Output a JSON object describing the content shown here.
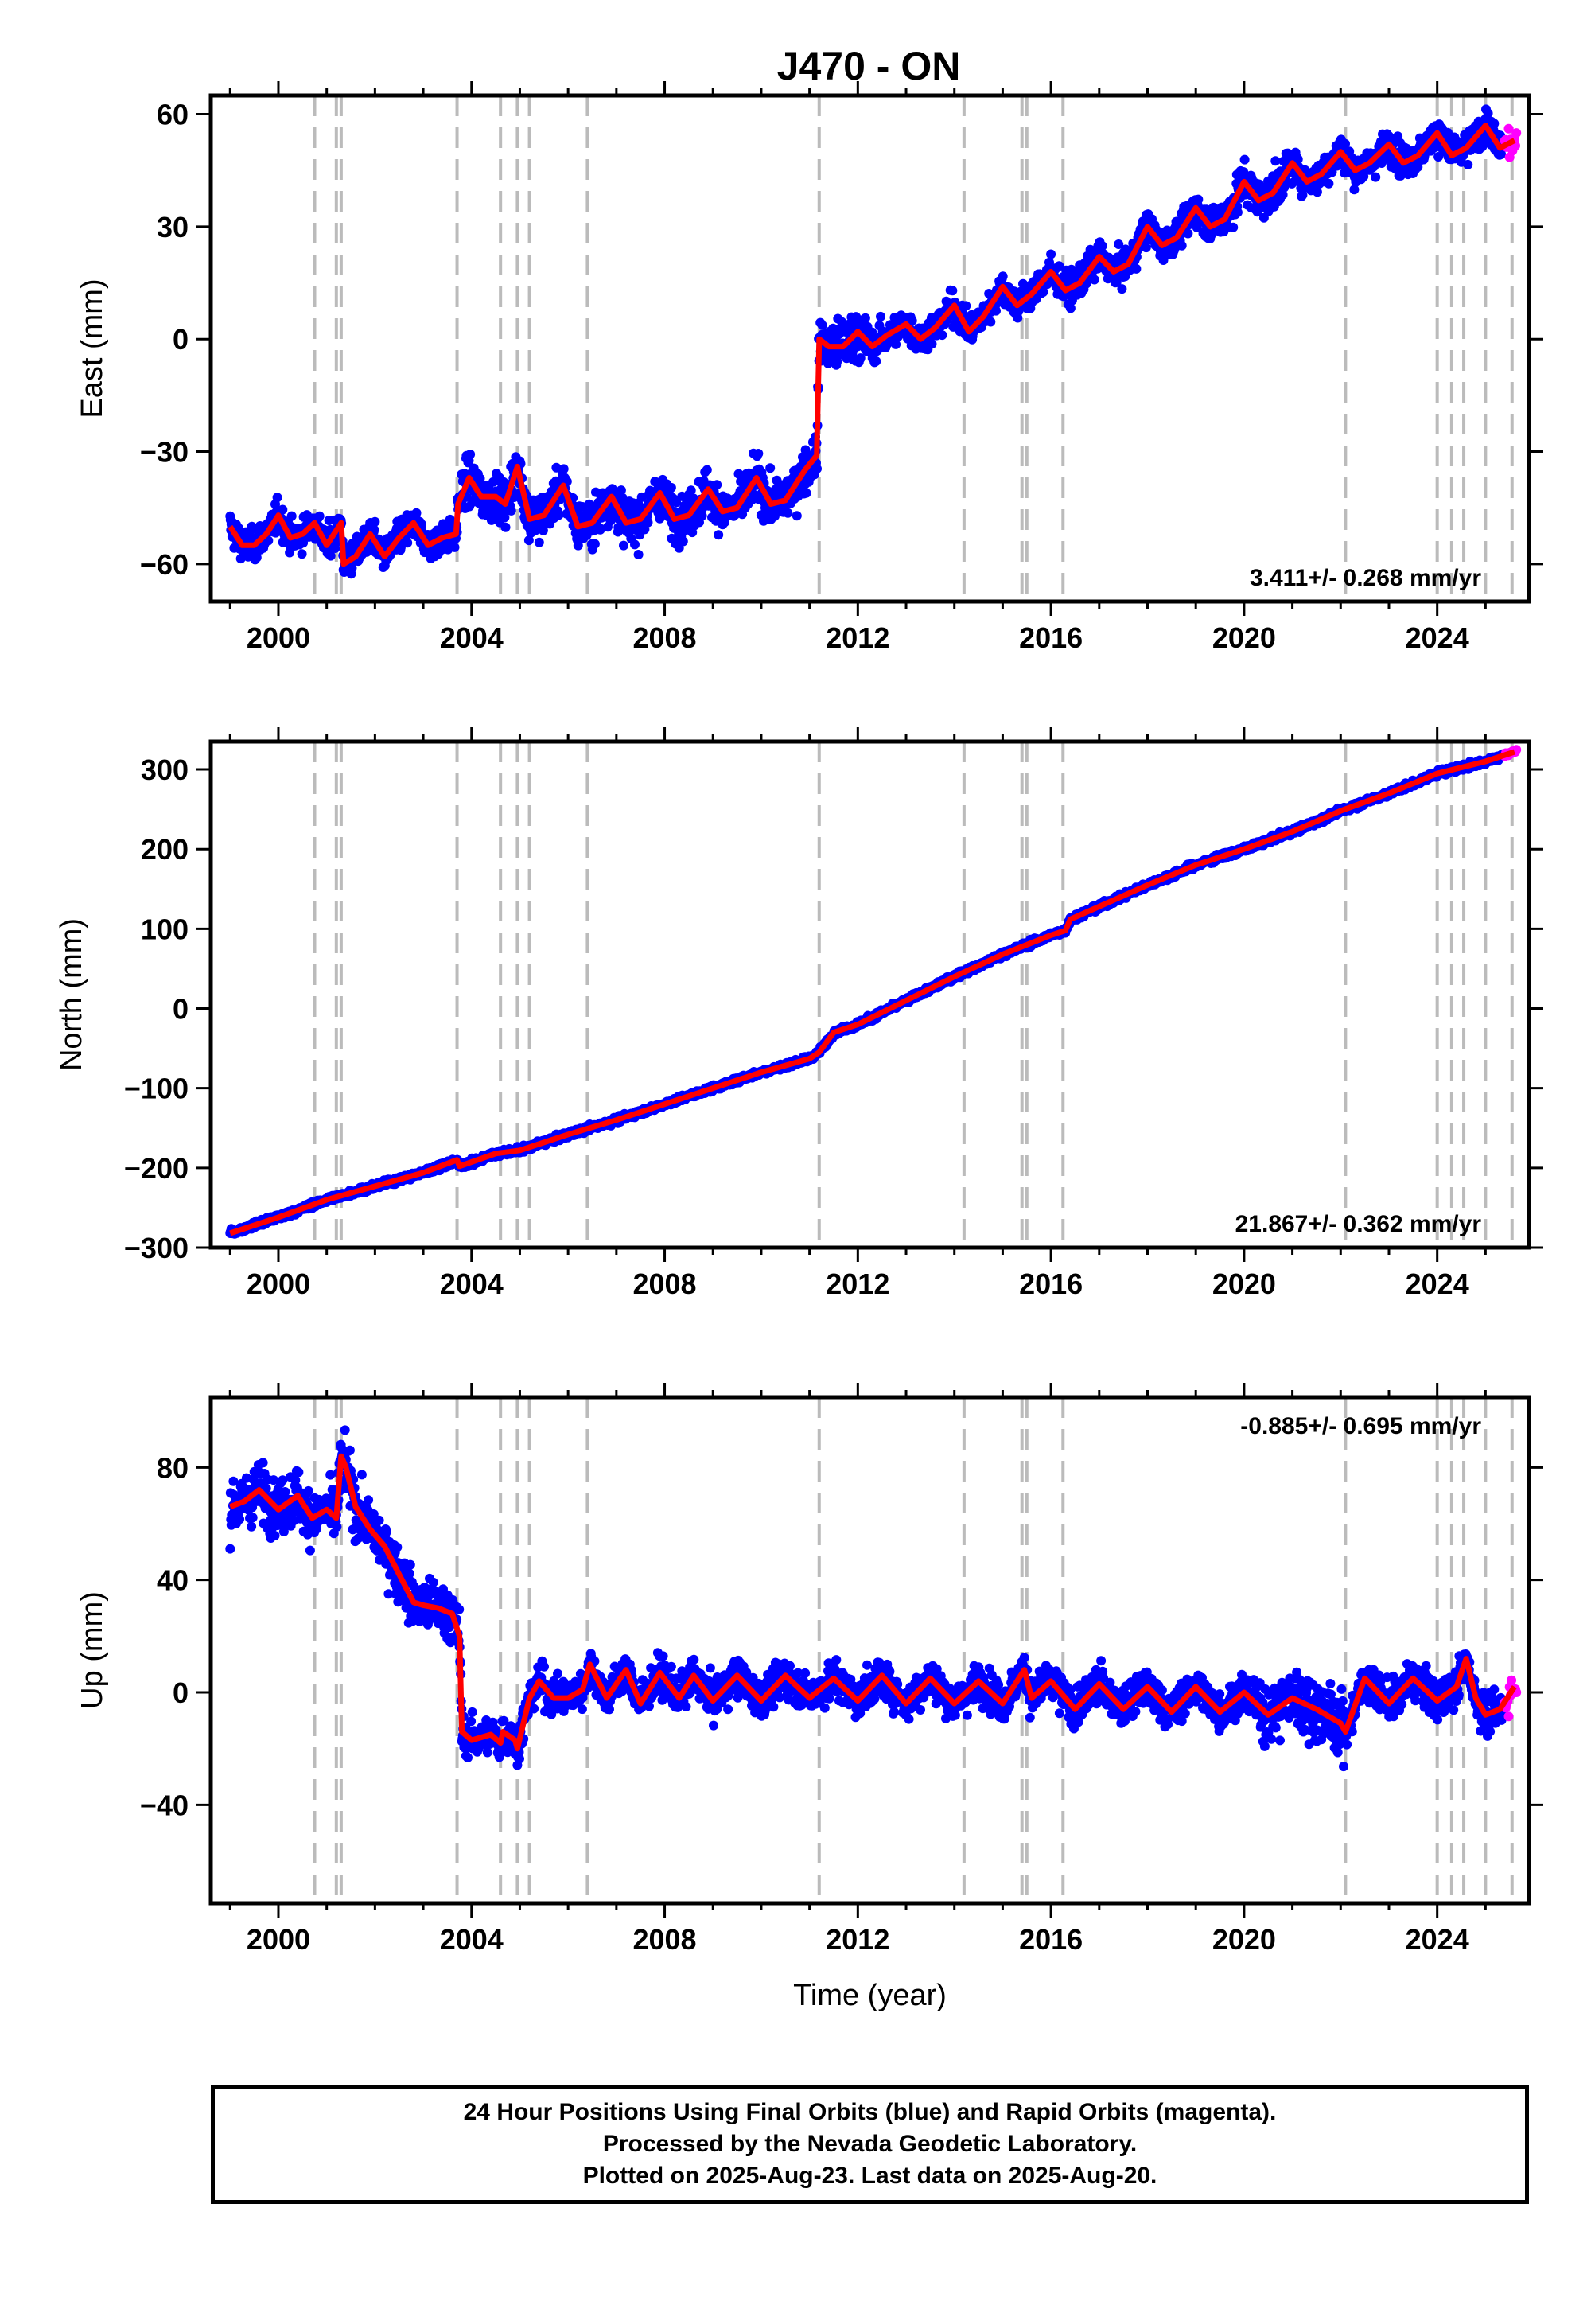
{
  "title": "J470 - ON",
  "footer": {
    "line1": "24 Hour Positions Using Final Orbits (blue) and Rapid Orbits (magenta).",
    "line2": "Processed by the Nevada Geodetic Laboratory.",
    "line3": "Plotted on 2025-Aug-23. Last data on 2025-Aug-20."
  },
  "colors": {
    "final": "#0000ff",
    "rapid": "#ff00ff",
    "model": "#ff0000",
    "event": "#bbbbbb"
  },
  "chart_data": [
    {
      "type": "scatter",
      "panel": "east",
      "ylabel": "East (mm)",
      "xlabel": "",
      "xlim": [
        1998.6,
        2025.9
      ],
      "ylim": [
        -70,
        65
      ],
      "xticks": [
        2000,
        2004,
        2008,
        2012,
        2016,
        2020,
        2024
      ],
      "yticks": [
        -60,
        -30,
        0,
        30,
        60
      ],
      "ytick_labels": [
        "−60",
        "−30",
        "0",
        "30",
        "60"
      ],
      "rate_label": "3.411+/- 0.268 mm/yr",
      "rate_position": "bottom-right",
      "event_lines": [
        2000.75,
        2001.2,
        2001.3,
        2003.7,
        2004.6,
        2004.95,
        2005.2,
        2006.4,
        2011.2,
        2014.2,
        2015.4,
        2015.5,
        2016.25,
        2022.1,
        2024.0,
        2024.3,
        2024.55,
        2025.0,
        2025.55
      ],
      "model": {
        "x": [
          1999.0,
          1999.25,
          1999.5,
          1999.75,
          2000.0,
          2000.25,
          2000.5,
          2000.75,
          2001.0,
          2001.3,
          2001.35,
          2001.6,
          2001.9,
          2002.2,
          2002.5,
          2002.8,
          2003.1,
          2003.4,
          2003.68,
          2003.72,
          2003.95,
          2004.2,
          2004.5,
          2004.7,
          2004.95,
          2005.2,
          2005.5,
          2005.9,
          2006.2,
          2006.5,
          2006.9,
          2007.2,
          2007.5,
          2007.9,
          2008.2,
          2008.5,
          2008.9,
          2009.2,
          2009.5,
          2009.9,
          2010.2,
          2010.5,
          2010.9,
          2011.15,
          2011.2,
          2011.4,
          2011.7,
          2012.0,
          2012.3,
          2012.6,
          2013.0,
          2013.3,
          2013.6,
          2014.0,
          2014.3,
          2014.6,
          2015.0,
          2015.3,
          2015.6,
          2016.0,
          2016.3,
          2016.6,
          2017.0,
          2017.3,
          2017.6,
          2018.0,
          2018.3,
          2018.6,
          2019.0,
          2019.3,
          2019.6,
          2020.0,
          2020.3,
          2020.6,
          2021.0,
          2021.3,
          2021.6,
          2022.0,
          2022.3,
          2022.6,
          2023.0,
          2023.3,
          2023.6,
          2024.0,
          2024.3,
          2024.6,
          2025.0,
          2025.3,
          2025.6
        ],
        "y": [
          -50,
          -55,
          -55,
          -52,
          -47,
          -53,
          -52,
          -49,
          -55,
          -49,
          -60,
          -58,
          -52,
          -58,
          -53,
          -49,
          -55,
          -53,
          -52,
          -44,
          -37,
          -42,
          -42,
          -44,
          -34,
          -48,
          -47,
          -39,
          -50,
          -49,
          -42,
          -49,
          -48,
          -41,
          -48,
          -47,
          -40,
          -46,
          -45,
          -37,
          -44,
          -43,
          -35,
          -31,
          0,
          -2,
          -2,
          2,
          -2,
          1,
          4,
          0,
          3,
          9,
          2,
          6,
          14,
          9,
          12,
          18,
          13,
          15,
          22,
          18,
          20,
          30,
          25,
          27,
          35,
          30,
          32,
          42,
          37,
          39,
          47,
          42,
          44,
          50,
          45,
          47,
          52,
          47,
          49,
          55,
          49,
          51,
          57,
          51,
          53
        ]
      }
    },
    {
      "type": "scatter",
      "panel": "north",
      "ylabel": "North (mm)",
      "xlabel": "",
      "xlim": [
        1998.6,
        2025.9
      ],
      "ylim": [
        -300,
        335
      ],
      "xticks": [
        2000,
        2004,
        2008,
        2012,
        2016,
        2020,
        2024
      ],
      "yticks": [
        -300,
        -200,
        -100,
        0,
        100,
        200,
        300
      ],
      "ytick_labels": [
        "−300",
        "−200",
        "−100",
        "0",
        "100",
        "200",
        "300"
      ],
      "rate_label": "21.867+/- 0.362 mm/yr",
      "rate_position": "bottom-right",
      "event_lines": [
        2000.75,
        2001.2,
        2001.3,
        2003.7,
        2004.6,
        2004.95,
        2005.2,
        2006.4,
        2011.2,
        2014.2,
        2015.4,
        2015.5,
        2016.25,
        2022.1,
        2024.0,
        2024.3,
        2024.55,
        2025.0,
        2025.55
      ],
      "model": {
        "x": [
          1999.0,
          2000.0,
          2001.0,
          2002.0,
          2003.0,
          2003.7,
          2003.75,
          2004.5,
          2005.0,
          2006.0,
          2007.0,
          2008.0,
          2009.0,
          2010.0,
          2011.0,
          2011.2,
          2011.5,
          2012.0,
          2013.0,
          2014.0,
          2015.0,
          2015.5,
          2016.0,
          2016.3,
          2016.4,
          2017.0,
          2018.0,
          2019.0,
          2020.0,
          2021.0,
          2022.0,
          2023.0,
          2024.0,
          2025.0,
          2025.6
        ],
        "y": [
          -282,
          -262,
          -240,
          -223,
          -206,
          -190,
          -198,
          -182,
          -178,
          -158,
          -140,
          -120,
          -100,
          -80,
          -63,
          -55,
          -30,
          -20,
          10,
          40,
          68,
          80,
          92,
          98,
          112,
          128,
          155,
          180,
          200,
          222,
          248,
          270,
          295,
          310,
          322
        ]
      }
    },
    {
      "type": "scatter",
      "panel": "up",
      "ylabel": "Up (mm)",
      "xlabel": "Time (year)",
      "xlim": [
        1998.6,
        2025.9
      ],
      "ylim": [
        -75,
        105
      ],
      "xticks": [
        2000,
        2004,
        2008,
        2012,
        2016,
        2020,
        2024
      ],
      "yticks": [
        -40,
        0,
        40,
        80
      ],
      "ytick_labels": [
        "−40",
        "0",
        "40",
        "80"
      ],
      "rate_label": "-0.885+/- 0.695 mm/yr",
      "rate_position": "top-right",
      "event_lines": [
        2000.75,
        2001.2,
        2001.3,
        2003.7,
        2004.6,
        2004.95,
        2005.2,
        2006.4,
        2011.2,
        2014.2,
        2015.4,
        2015.5,
        2016.25,
        2022.1,
        2024.0,
        2024.3,
        2024.55,
        2025.0,
        2025.55
      ],
      "model": {
        "x": [
          1999.0,
          1999.3,
          1999.6,
          2000.0,
          2000.4,
          2000.7,
          2001.0,
          2001.2,
          2001.3,
          2001.4,
          2001.6,
          2001.9,
          2002.2,
          2002.5,
          2002.8,
          2003.0,
          2003.3,
          2003.6,
          2003.75,
          2003.8,
          2004.0,
          2004.4,
          2004.6,
          2004.65,
          2004.9,
          2004.95,
          2005.2,
          2005.4,
          2005.7,
          2006.0,
          2006.3,
          2006.45,
          2006.8,
          2007.2,
          2007.5,
          2007.9,
          2008.3,
          2008.6,
          2009.0,
          2009.5,
          2010.0,
          2010.5,
          2011.0,
          2011.5,
          2012.0,
          2012.5,
          2013.0,
          2013.5,
          2014.0,
          2014.5,
          2015.0,
          2015.45,
          2015.6,
          2016.0,
          2016.5,
          2017.0,
          2017.5,
          2018.0,
          2018.5,
          2019.0,
          2019.5,
          2020.0,
          2020.5,
          2021.0,
          2021.5,
          2022.0,
          2022.1,
          2022.5,
          2023.0,
          2023.5,
          2024.0,
          2024.4,
          2024.6,
          2024.8,
          2025.0,
          2025.3,
          2025.6
        ],
        "y": [
          66,
          68,
          72,
          65,
          70,
          62,
          65,
          62,
          84,
          80,
          66,
          58,
          52,
          42,
          32,
          31,
          30,
          28,
          20,
          -14,
          -17,
          -15,
          -18,
          -14,
          -17,
          -20,
          -2,
          4,
          -2,
          -2,
          1,
          10,
          -2,
          8,
          -4,
          7,
          -2,
          6,
          -3,
          6,
          -3,
          6,
          -2,
          5,
          -3,
          6,
          -4,
          5,
          -4,
          4,
          -4,
          8,
          -2,
          4,
          -6,
          3,
          -6,
          2,
          -7,
          2,
          -7,
          0,
          -8,
          -2,
          -6,
          -11,
          -14,
          5,
          -4,
          5,
          -3,
          2,
          12,
          -2,
          -8,
          -6,
          2
        ]
      }
    }
  ]
}
